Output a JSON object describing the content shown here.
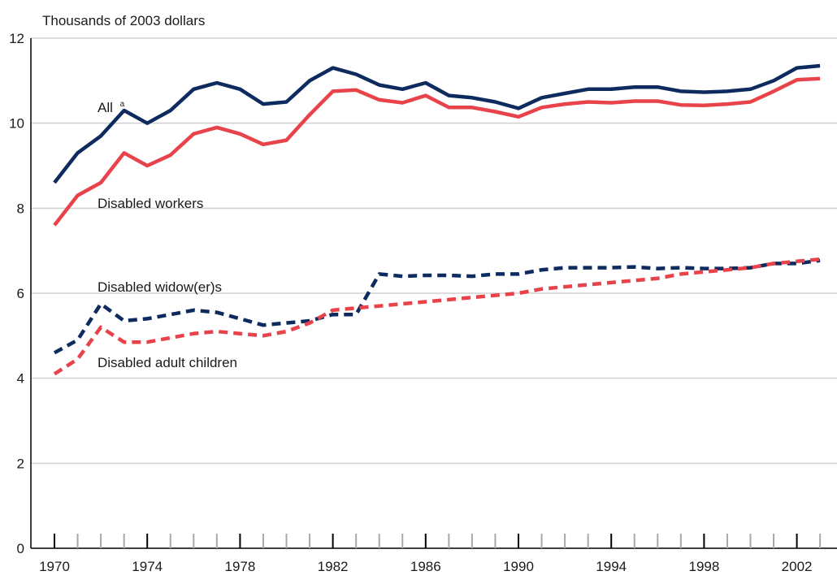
{
  "chart_data": {
    "type": "line",
    "ylabel": "Thousands of 2003 dollars",
    "ylim": [
      0,
      12
    ],
    "yticks": [
      0,
      2,
      4,
      6,
      8,
      10,
      12
    ],
    "xlim": [
      1970,
      2003
    ],
    "xtick_labels": [
      "1970",
      "1974",
      "1978",
      "1982",
      "1986",
      "1990",
      "1994",
      "1998",
      "2002"
    ],
    "x": [
      1970,
      1971,
      1972,
      1973,
      1974,
      1975,
      1976,
      1977,
      1978,
      1979,
      1980,
      1981,
      1982,
      1983,
      1984,
      1985,
      1986,
      1987,
      1988,
      1989,
      1990,
      1991,
      1992,
      1993,
      1994,
      1995,
      1996,
      1997,
      1998,
      1999,
      2000,
      2001,
      2002,
      2003
    ],
    "grid": true,
    "series": [
      {
        "name": "All",
        "superscript": "a",
        "color": "#0d2b5e",
        "dash": false,
        "values": [
          8.6,
          9.3,
          9.7,
          10.3,
          10.0,
          10.3,
          10.8,
          10.95,
          10.8,
          10.45,
          10.5,
          11.0,
          11.3,
          11.15,
          10.9,
          10.8,
          10.95,
          10.65,
          10.6,
          10.5,
          10.35,
          10.6,
          10.7,
          10.8,
          10.8,
          10.85,
          10.85,
          10.75,
          10.73,
          10.75,
          10.8,
          11.0,
          11.3,
          11.35
        ]
      },
      {
        "name": "Disabled workers",
        "color": "#e8424a",
        "dash": false,
        "values": [
          7.6,
          8.3,
          8.6,
          9.3,
          9.0,
          9.25,
          9.75,
          9.9,
          9.75,
          9.5,
          9.6,
          10.2,
          10.75,
          10.78,
          10.55,
          10.48,
          10.65,
          10.37,
          10.37,
          10.27,
          10.15,
          10.37,
          10.45,
          10.5,
          10.48,
          10.52,
          10.52,
          10.43,
          10.42,
          10.45,
          10.5,
          10.75,
          11.02,
          11.05
        ]
      },
      {
        "name": "Disabled widow(er)s",
        "color": "#0d2b5e",
        "dash": true,
        "values": [
          4.6,
          4.9,
          5.75,
          5.35,
          5.4,
          5.5,
          5.6,
          5.55,
          5.4,
          5.25,
          5.3,
          5.35,
          5.5,
          5.5,
          6.45,
          6.4,
          6.42,
          6.42,
          6.4,
          6.45,
          6.45,
          6.55,
          6.6,
          6.6,
          6.6,
          6.62,
          6.58,
          6.6,
          6.58,
          6.58,
          6.6,
          6.7,
          6.7,
          6.77
        ]
      },
      {
        "name": "Disabled adult children",
        "color": "#e8424a",
        "dash": true,
        "values": [
          4.1,
          4.45,
          5.2,
          4.85,
          4.85,
          4.95,
          5.05,
          5.1,
          5.05,
          5.0,
          5.1,
          5.3,
          5.6,
          5.65,
          5.7,
          5.75,
          5.8,
          5.85,
          5.9,
          5.95,
          6.0,
          6.1,
          6.15,
          6.2,
          6.25,
          6.3,
          6.35,
          6.45,
          6.5,
          6.55,
          6.6,
          6.7,
          6.75,
          6.8
        ]
      }
    ]
  }
}
